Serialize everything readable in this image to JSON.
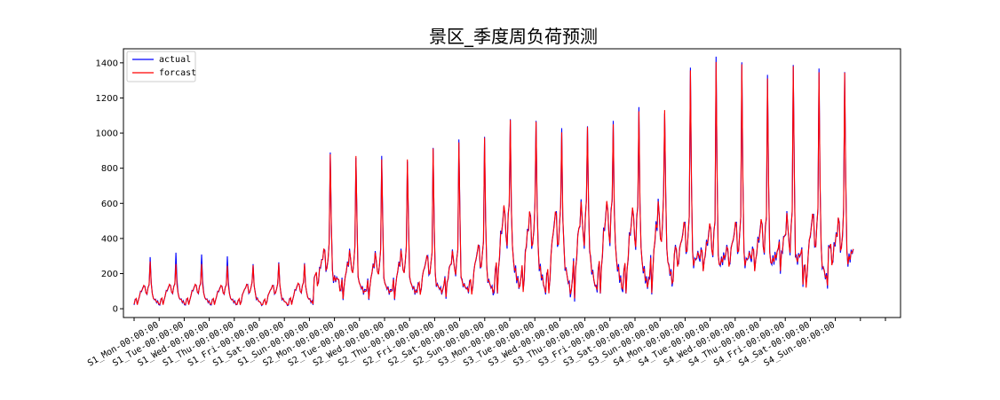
{
  "chart_data": {
    "type": "line",
    "title": "景区_季度周负荷预测",
    "xlabel": "",
    "ylabel": "",
    "ylim": [
      -50,
      1480
    ],
    "yticks": [
      0,
      200,
      400,
      600,
      800,
      1000,
      1200,
      1400
    ],
    "x_categories": [
      "S1_Mon-00:00:00",
      "S1_Tue-00:00:00",
      "S1_Wed-00:00:00",
      "S1_Thu-00:00:00",
      "S1_Fri-00:00:00",
      "S1_Sat-00:00:00",
      "S1_Sun-00:00:00",
      "S2_Mon-00:00:00",
      "S2_Tue-00:00:00",
      "S2_Wed-00:00:00",
      "S2_Thu-00:00:00",
      "S2_Fri-00:00:00",
      "S2_Sat-00:00:00",
      "S2_Sun-00:00:00",
      "S3_Mon-00:00:00",
      "S3_Tue-00:00:00",
      "S3_Wed-00:00:00",
      "S3_Thu-00:00:00",
      "S3_Fri-00:00:00",
      "S3_Sat-00:00:00",
      "S3_Sun-00:00:00",
      "S4_Mon-00:00:00",
      "S4_Tue-00:00:00",
      "S4_Wed-00:00:00",
      "S4_Thu-00:00:00",
      "S4_Fri-00:00:00",
      "S4_Sat-00:00:00",
      "S4_Sun-00:00:00"
    ],
    "grid": false,
    "legend_position": "top-left",
    "days": [
      {
        "peak_actual": 285,
        "peak_forcast": 265,
        "base": 30,
        "mid": 110
      },
      {
        "peak_actual": 310,
        "peak_forcast": 250,
        "base": 30,
        "mid": 115
      },
      {
        "peak_actual": 300,
        "peak_forcast": 250,
        "base": 30,
        "mid": 115
      },
      {
        "peak_actual": 290,
        "peak_forcast": 240,
        "base": 30,
        "mid": 110
      },
      {
        "peak_actual": 250,
        "peak_forcast": 245,
        "base": 25,
        "mid": 115
      },
      {
        "peak_actual": 260,
        "peak_forcast": 255,
        "base": 25,
        "mid": 110
      },
      {
        "peak_actual": 250,
        "peak_forcast": 250,
        "base": 30,
        "mid": 120
      },
      {
        "peak_actual": 890,
        "peak_forcast": 880,
        "base": 170,
        "mid": 280
      },
      {
        "peak_actual": 880,
        "peak_forcast": 880,
        "base": 90,
        "mid": 260
      },
      {
        "peak_actual": 890,
        "peak_forcast": 860,
        "base": 90,
        "mid": 250
      },
      {
        "peak_actual": 860,
        "peak_forcast": 860,
        "base": 90,
        "mid": 260
      },
      {
        "peak_actual": 900,
        "peak_forcast": 905,
        "base": 100,
        "mid": 250
      },
      {
        "peak_actual": 970,
        "peak_forcast": 950,
        "base": 110,
        "mid": 260
      },
      {
        "peak_actual": 960,
        "peak_forcast": 965,
        "base": 100,
        "mid": 300
      },
      {
        "peak_actual": 1050,
        "peak_forcast": 1060,
        "base": 130,
        "mid": 480
      },
      {
        "peak_actual": 1080,
        "peak_forcast": 1070,
        "base": 120,
        "mid": 450
      },
      {
        "peak_actual": 1000,
        "peak_forcast": 990,
        "base": 100,
        "mid": 460
      },
      {
        "peak_actual": 1050,
        "peak_forcast": 1040,
        "base": 110,
        "mid": 480
      },
      {
        "peak_actual": 1040,
        "peak_forcast": 1035,
        "base": 130,
        "mid": 500
      },
      {
        "peak_actual": 1120,
        "peak_forcast": 1110,
        "base": 130,
        "mid": 470
      },
      {
        "peak_actual": 1150,
        "peak_forcast": 1150,
        "base": 140,
        "mid": 480
      },
      {
        "peak_actual": 1350,
        "peak_forcast": 1345,
        "base": 320,
        "mid": 410
      },
      {
        "peak_actual": 1405,
        "peak_forcast": 1390,
        "base": 300,
        "mid": 400
      },
      {
        "peak_actual": 1380,
        "peak_forcast": 1380,
        "base": 320,
        "mid": 410
      },
      {
        "peak_actual": 1300,
        "peak_forcast": 1295,
        "base": 300,
        "mid": 420
      },
      {
        "peak_actual": 1395,
        "peak_forcast": 1385,
        "base": 330,
        "mid": 430
      },
      {
        "peak_actual": 1335,
        "peak_forcast": 1330,
        "base": 150,
        "mid": 450
      },
      {
        "peak_actual": 1360,
        "peak_forcast": 1350,
        "base": 340,
        "mid": 420
      }
    ],
    "series": [
      {
        "name": "actual",
        "color": "#0000ff"
      },
      {
        "name": "forcast",
        "color": "#ff0000"
      }
    ]
  }
}
